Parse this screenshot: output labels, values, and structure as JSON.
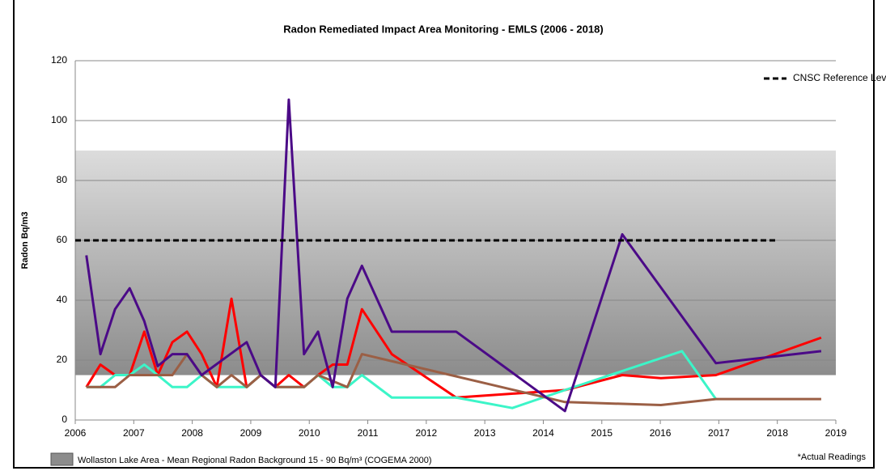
{
  "chart_data": {
    "type": "line",
    "title": "Radon Remediated Impact Area Monitoring - EMLS (2006 - 2018)",
    "ylabel": "Radon Bq/m3",
    "xlim": [
      2006,
      2019
    ],
    "xticks": [
      2006,
      2007,
      2008,
      2009,
      2010,
      2011,
      2012,
      2013,
      2014,
      2015,
      2016,
      2017,
      2018,
      2019
    ],
    "ylim": [
      0,
      120
    ],
    "yticks": [
      0,
      20,
      40,
      60,
      80,
      100,
      120
    ],
    "grid": true,
    "band": {
      "label": "Wollaston Lake Area - Mean Regional Radon Background 15 - 90 Bq/m³ (COGEMA 2000)",
      "range": [
        15,
        90
      ],
      "color": "#8c8c8c"
    },
    "reference": {
      "name": "CNSC Reference Level",
      "value": 60,
      "x": [
        2006,
        2018
      ],
      "color": "#000000"
    },
    "legend": "top-right",
    "note": "*Actual Readings",
    "series": [
      {
        "color": "#ff0000",
        "x": [
          2006.19,
          2006.43,
          2006.68,
          2006.93,
          2007.18,
          2007.41,
          2007.66,
          2007.91,
          2008.16,
          2008.42,
          2008.67,
          2008.93,
          2009.17,
          2009.42,
          2009.65,
          2009.91,
          2010.15,
          2010.4,
          2010.65,
          2010.9,
          2011.41,
          2012.51,
          2014.37,
          2015.35,
          2016.01,
          2016.95,
          2018.75
        ],
        "values": [
          11,
          18.5,
          15,
          15,
          29.5,
          15,
          26,
          29.5,
          22,
          11,
          40.5,
          11,
          15,
          11,
          15,
          11,
          15,
          18.5,
          18.5,
          37,
          22,
          7.5,
          10,
          15,
          14,
          15,
          27.5
        ]
      },
      {
        "color": "#3cf5c8",
        "x": [
          2006.19,
          2006.43,
          2006.68,
          2006.93,
          2007.18,
          2007.41,
          2007.66,
          2007.91,
          2008.16,
          2008.42,
          2008.67,
          2008.93,
          2009.17,
          2009.42,
          2009.65,
          2009.91,
          2010.15,
          2010.4,
          2010.65,
          2010.9,
          2011.41,
          2012.51,
          2013.47,
          2014.37,
          2016.37,
          2016.95
        ],
        "values": [
          11,
          11,
          15,
          15,
          18.5,
          15,
          11,
          11,
          15,
          11,
          11,
          11,
          15,
          11,
          11,
          11,
          15,
          11,
          11,
          15,
          7.5,
          7.5,
          4,
          10,
          23,
          7
        ]
      },
      {
        "color": "#9b5f45",
        "x": [
          2006.19,
          2006.68,
          2006.93,
          2007.18,
          2007.66,
          2007.91,
          2008.16,
          2008.42,
          2008.67,
          2008.93,
          2009.17,
          2009.42,
          2009.91,
          2010.15,
          2010.4,
          2010.65,
          2010.9,
          2014.37,
          2016.01,
          2016.95,
          2018.75
        ],
        "values": [
          11,
          11,
          15,
          15,
          15,
          22,
          15,
          11,
          15,
          11,
          15,
          11,
          11,
          15,
          13,
          11,
          22,
          6,
          5,
          7,
          7
        ]
      },
      {
        "color": "#4b0a87",
        "x": [
          2006.19,
          2006.43,
          2006.68,
          2006.93,
          2007.18,
          2007.41,
          2007.66,
          2007.91,
          2008.16,
          2008.93,
          2009.17,
          2009.42,
          2009.65,
          2009.91,
          2010.15,
          2010.4,
          2010.65,
          2010.9,
          2011.41,
          2012.51,
          2014.37,
          2015.35,
          2016.95,
          2018.75
        ],
        "values": [
          55,
          22,
          37,
          44,
          33,
          18,
          22,
          22,
          15,
          26,
          15,
          11,
          107,
          22,
          29.5,
          11,
          40.5,
          51.5,
          29.5,
          29.5,
          3,
          62,
          19,
          23
        ]
      }
    ]
  }
}
